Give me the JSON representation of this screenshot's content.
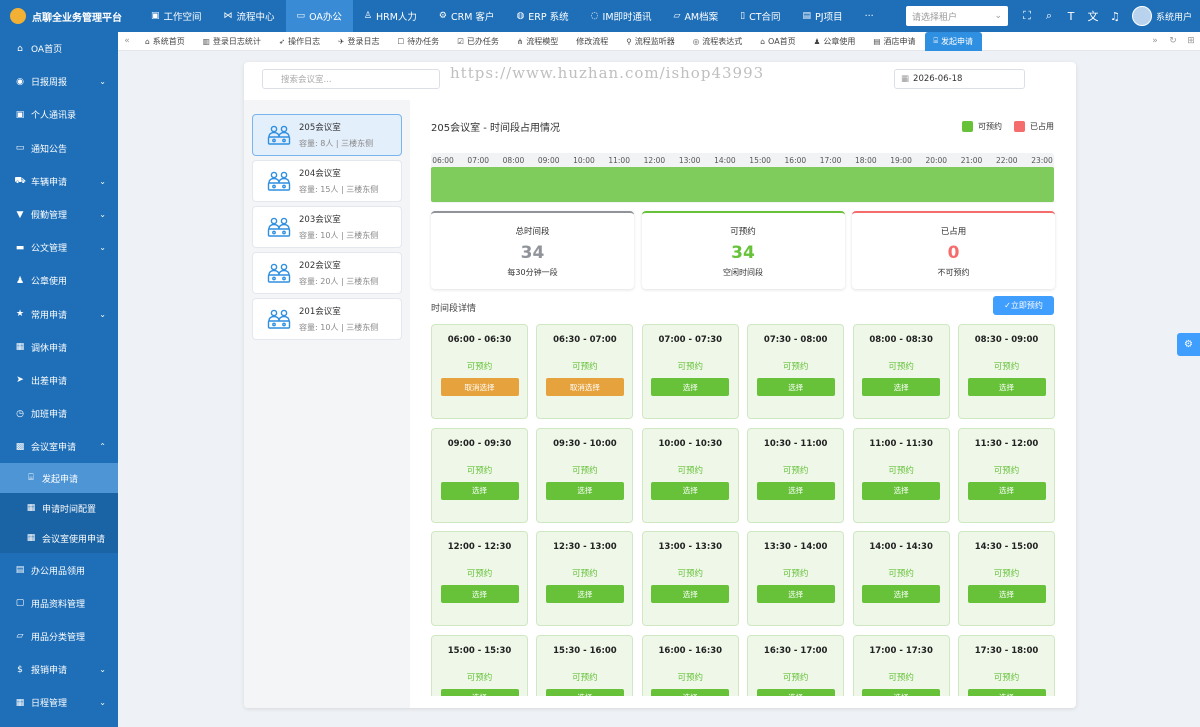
{
  "app": {
    "title": "点聊全业务管理平台"
  },
  "topnav": [
    {
      "label": "工作空间",
      "icon": "monitor-icon"
    },
    {
      "label": "流程中心",
      "icon": "flow-icon"
    },
    {
      "label": "OA办公",
      "icon": "desktop-icon",
      "active": true
    },
    {
      "label": "HRM人力",
      "icon": "person-icon"
    },
    {
      "label": "CRM 客户",
      "icon": "gear-icon"
    },
    {
      "label": "ERP 系统",
      "icon": "globe-icon"
    },
    {
      "label": "IM即时通讯",
      "icon": "chat-icon"
    },
    {
      "label": "AM档案",
      "icon": "folder-icon"
    },
    {
      "label": "CT合同",
      "icon": "bookmark-icon"
    },
    {
      "label": "PJ项目",
      "icon": "project-icon"
    }
  ],
  "topbar": {
    "more": "···",
    "tenant_placeholder": "请选择租户",
    "user_name": "系统用户"
  },
  "sidebar": [
    {
      "label": "OA首页",
      "icon": "home-icon"
    },
    {
      "label": "日报周报",
      "icon": "report-icon",
      "chev": "⌄"
    },
    {
      "label": "个人通讯录",
      "icon": "contact-icon"
    },
    {
      "label": "通知公告",
      "icon": "notice-icon"
    },
    {
      "label": "车辆申请",
      "icon": "car-icon",
      "chev": "⌄"
    },
    {
      "label": "假勤管理",
      "icon": "leave-icon",
      "chev": "⌄"
    },
    {
      "label": "公文管理",
      "icon": "briefcase-icon",
      "chev": "⌄"
    },
    {
      "label": "公章使用",
      "icon": "seal-icon"
    },
    {
      "label": "常用申请",
      "icon": "star-icon",
      "chev": "⌄"
    },
    {
      "label": "调休申请",
      "icon": "calendar-icon"
    },
    {
      "label": "出差申请",
      "icon": "plane-icon"
    },
    {
      "label": "加班申请",
      "icon": "clock-icon"
    },
    {
      "label": "会议室申请",
      "icon": "meeting-icon",
      "chev": "⌃"
    },
    {
      "label": "发起申请",
      "icon": "bank-icon",
      "sub": true,
      "active": true
    },
    {
      "label": "申请时间配置",
      "icon": "calendar-icon",
      "sub": true
    },
    {
      "label": "会议室使用申请",
      "icon": "grid-icon",
      "sub": true
    },
    {
      "label": "办公用品领用",
      "icon": "supply-icon"
    },
    {
      "label": "用品资料管理",
      "icon": "box-icon"
    },
    {
      "label": "用品分类管理",
      "icon": "folder-icon"
    },
    {
      "label": "报销申请",
      "icon": "dollar-icon",
      "chev": "⌄"
    },
    {
      "label": "日程管理",
      "icon": "calendar-icon",
      "chev": "⌄"
    }
  ],
  "tabs": [
    {
      "label": "系统首页",
      "icon": "home-icon"
    },
    {
      "label": "登录日志统计",
      "icon": "stats-icon"
    },
    {
      "label": "操作日志",
      "icon": "pointer-icon"
    },
    {
      "label": "登录日志",
      "icon": "login-icon"
    },
    {
      "label": "待办任务",
      "icon": "todo-icon"
    },
    {
      "label": "已办任务",
      "icon": "done-icon"
    },
    {
      "label": "流程模型",
      "icon": "model-icon"
    },
    {
      "label": "修改流程",
      "icon": ""
    },
    {
      "label": "流程监听器",
      "icon": "listener-icon"
    },
    {
      "label": "流程表达式",
      "icon": "expression-icon"
    },
    {
      "label": "OA首页",
      "icon": "home-icon"
    },
    {
      "label": "公章使用",
      "icon": "seal-icon"
    },
    {
      "label": "酒店申请",
      "icon": "hotel-icon"
    },
    {
      "label": "发起申请",
      "icon": "bank-icon",
      "active": true
    }
  ],
  "content": {
    "search_placeholder": "搜索会议室...",
    "watermark": "https://www.huzhan.com/ishop43993",
    "date": "2026-06-18",
    "rooms": [
      {
        "name": "205会议室",
        "desc": "容量: 8人 | 三楼东侧",
        "active": true
      },
      {
        "name": "204会议室",
        "desc": "容量: 15人 | 三楼东侧"
      },
      {
        "name": "203会议室",
        "desc": "容量: 10人 | 三楼东侧"
      },
      {
        "name": "202会议室",
        "desc": "容量: 20人 | 三楼东侧"
      },
      {
        "name": "201会议室",
        "desc": "容量: 10人 | 三楼东侧"
      }
    ],
    "room_title": "205会议室 - 时间段占用情况",
    "legend": {
      "available": "可预约",
      "occupied": "已占用",
      "available_color": "#67c23a",
      "occupied_color": "#f56c6c"
    },
    "hours": [
      "06:00",
      "07:00",
      "08:00",
      "09:00",
      "10:00",
      "11:00",
      "12:00",
      "13:00",
      "14:00",
      "15:00",
      "16:00",
      "17:00",
      "18:00",
      "19:00",
      "20:00",
      "21:00",
      "22:00",
      "23:00"
    ],
    "stats": [
      {
        "title": "总时间段",
        "value": "34",
        "sub": "每30分钟一段",
        "color": "#909399"
      },
      {
        "title": "可预约",
        "value": "34",
        "sub": "空闲时间段",
        "color": "#67c23a"
      },
      {
        "title": "已占用",
        "value": "0",
        "sub": "不可预约",
        "color": "#f56c6c"
      }
    ],
    "detail_title": "时间段详情",
    "book_button": "✓立即预约",
    "slots": [
      {
        "time": "06:00 - 06:30",
        "status": "可预约",
        "button": "取消选择",
        "selected": true
      },
      {
        "time": "06:30 - 07:00",
        "status": "可预约",
        "button": "取消选择",
        "selected": true
      },
      {
        "time": "07:00 - 07:30",
        "status": "可预约",
        "button": "选择"
      },
      {
        "time": "07:30 - 08:00",
        "status": "可预约",
        "button": "选择"
      },
      {
        "time": "08:00 - 08:30",
        "status": "可预约",
        "button": "选择"
      },
      {
        "time": "08:30 - 09:00",
        "status": "可预约",
        "button": "选择"
      },
      {
        "time": "09:00 - 09:30",
        "status": "可预约",
        "button": "选择"
      },
      {
        "time": "09:30 - 10:00",
        "status": "可预约",
        "button": "选择"
      },
      {
        "time": "10:00 - 10:30",
        "status": "可预约",
        "button": "选择"
      },
      {
        "time": "10:30 - 11:00",
        "status": "可预约",
        "button": "选择"
      },
      {
        "time": "11:00 - 11:30",
        "status": "可预约",
        "button": "选择"
      },
      {
        "time": "11:30 - 12:00",
        "status": "可预约",
        "button": "选择"
      },
      {
        "time": "12:00 - 12:30",
        "status": "可预约",
        "button": "选择"
      },
      {
        "time": "12:30 - 13:00",
        "status": "可预约",
        "button": "选择"
      },
      {
        "time": "13:00 - 13:30",
        "status": "可预约",
        "button": "选择"
      },
      {
        "time": "13:30 - 14:00",
        "status": "可预约",
        "button": "选择"
      },
      {
        "time": "14:00 - 14:30",
        "status": "可预约",
        "button": "选择"
      },
      {
        "time": "14:30 - 15:00",
        "status": "可预约",
        "button": "选择"
      },
      {
        "time": "15:00 - 15:30",
        "status": "可预约",
        "button": "选择"
      },
      {
        "time": "15:30 - 16:00",
        "status": "可预约",
        "button": "选择"
      },
      {
        "time": "16:00 - 16:30",
        "status": "可预约",
        "button": "选择"
      },
      {
        "time": "16:30 - 17:00",
        "status": "可预约",
        "button": "选择"
      },
      {
        "time": "17:00 - 17:30",
        "status": "可预约",
        "button": "选择"
      },
      {
        "time": "17:30 - 18:00",
        "status": "可预约",
        "button": "选择"
      }
    ]
  }
}
